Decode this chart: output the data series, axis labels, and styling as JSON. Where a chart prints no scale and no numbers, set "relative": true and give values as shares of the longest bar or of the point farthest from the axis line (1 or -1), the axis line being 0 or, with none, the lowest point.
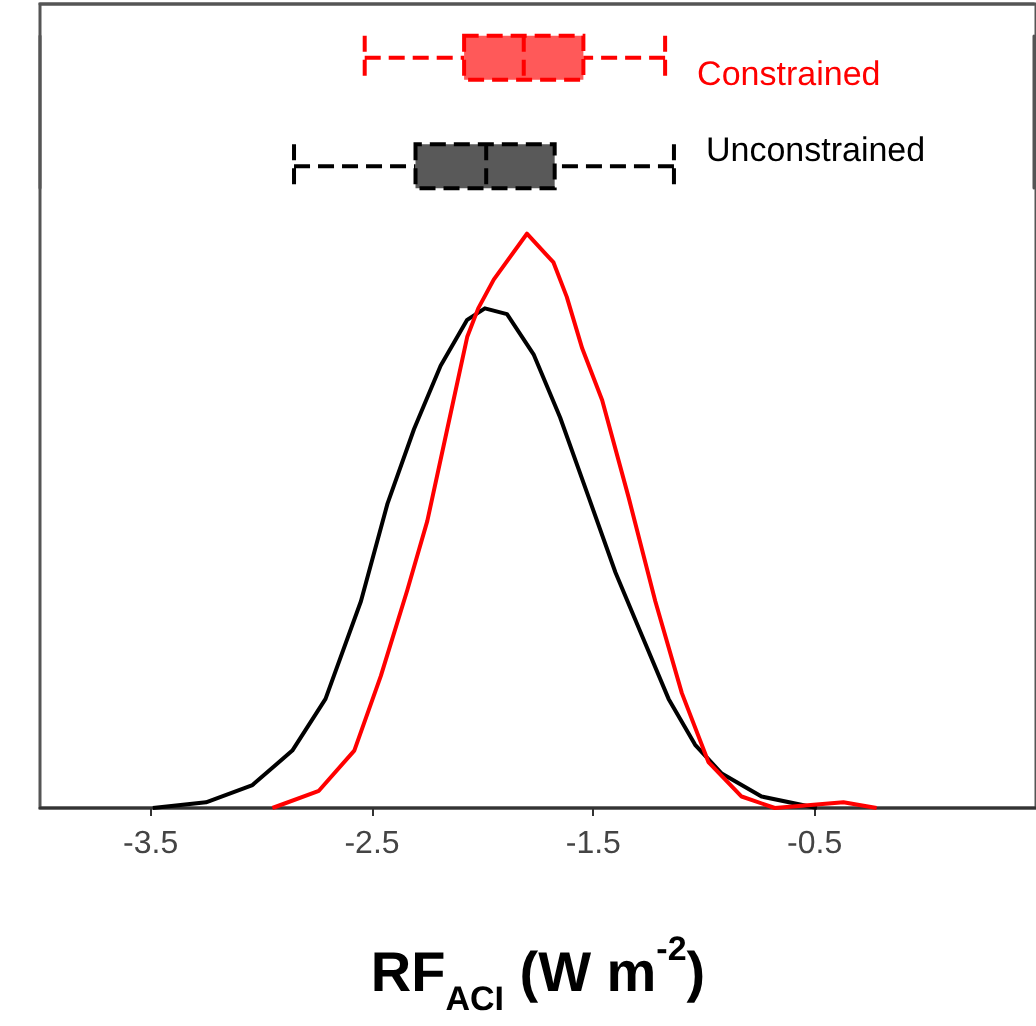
{
  "chart_data": [
    {
      "type": "box",
      "orientation": "horizontal",
      "categories": [
        "Constrained",
        "Unconstrained"
      ],
      "colors": [
        "#ff0000",
        "#000000"
      ],
      "line_style": "dashed",
      "xlim": [
        -4,
        0.5
      ],
      "tick_labels": false,
      "boxes": [
        {
          "low": -2.53,
          "q1": -2.08,
          "median": -1.81,
          "q3": -1.54,
          "high": -1.17
        },
        {
          "low": -2.85,
          "q1": -2.3,
          "median": -1.98,
          "q3": -1.67,
          "high": -1.13
        }
      ]
    },
    {
      "type": "line",
      "relative": true,
      "xlabel": "RF$_{ACI}$ (W m$^{-2}$)",
      "xlim": [
        -4,
        0.5
      ],
      "xticks": [
        -3.5,
        -2.5,
        -1.5,
        -0.5
      ],
      "grid": false,
      "marker": "none",
      "series": [
        {
          "color": "#000000",
          "x": [
            -3.49,
            -3.25,
            -3.04,
            -2.86,
            -2.71,
            -2.55,
            -2.43,
            -2.31,
            -2.19,
            -2.07,
            -1.99,
            -1.89,
            -1.77,
            -1.65,
            -1.52,
            -1.4,
            -1.28,
            -1.16,
            -1.04,
            -0.92,
            -0.74,
            -0.49
          ],
          "values": [
            0,
            0.01,
            0.04,
            0.1,
            0.19,
            0.36,
            0.53,
            0.66,
            0.77,
            0.85,
            0.87,
            0.86,
            0.79,
            0.68,
            0.54,
            0.41,
            0.3,
            0.19,
            0.11,
            0.06,
            0.02,
            0
          ]
        },
        {
          "color": "#ff0000",
          "x": [
            -2.95,
            -2.74,
            -2.58,
            -2.46,
            -2.34,
            -2.25,
            -2.16,
            -2.07,
            -2.02,
            -1.95,
            -1.8,
            -1.68,
            -1.62,
            -1.55,
            -1.46,
            -1.34,
            -1.22,
            -1.1,
            -0.98,
            -0.83,
            -0.68,
            -0.37,
            -0.22
          ],
          "values": [
            0,
            0.03,
            0.1,
            0.23,
            0.38,
            0.5,
            0.66,
            0.82,
            0.87,
            0.92,
            1,
            0.95,
            0.89,
            0.8,
            0.71,
            0.54,
            0.36,
            0.2,
            0.08,
            0.02,
            0,
            0.01,
            0
          ]
        }
      ]
    }
  ]
}
